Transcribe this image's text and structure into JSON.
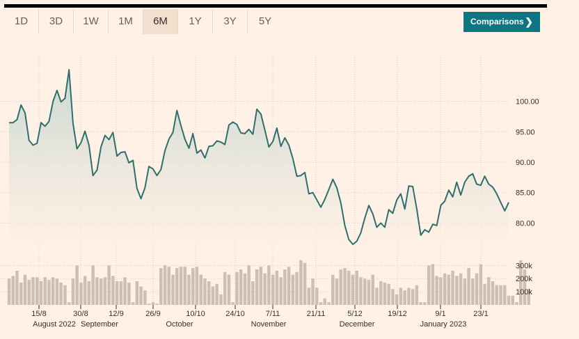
{
  "tabs": [
    {
      "label": "1D",
      "active": false
    },
    {
      "label": "3D",
      "active": false
    },
    {
      "label": "1W",
      "active": false
    },
    {
      "label": "1M",
      "active": false
    },
    {
      "label": "6M",
      "active": true
    },
    {
      "label": "1Y",
      "active": false
    },
    {
      "label": "3Y",
      "active": false
    },
    {
      "label": "5Y",
      "active": false
    }
  ],
  "comparisons_button": {
    "label": "Comparisons",
    "icon": "chevron-right-icon"
  },
  "colors": {
    "background": "#fff1e5",
    "line": "#2e6e6e",
    "area": "#dfe6de",
    "volume": "#ccc0b4",
    "accent": "#0d7680"
  },
  "chart_data": [
    {
      "type": "area",
      "title": "",
      "xlabel": "",
      "ylabel": "",
      "ylim": [
        75.7,
        107.5
      ],
      "yticks": [
        80,
        85,
        90,
        95,
        100
      ],
      "ytick_labels": [
        "80.00",
        "85.00",
        "90.00",
        "95.00",
        "100.00"
      ],
      "grid": true,
      "x_tick_labels": [
        "15/8",
        "30/8",
        "12/9",
        "26/9",
        "10/10",
        "24/10",
        "7/11",
        "21/11",
        "5/12",
        "19/12",
        "9/1",
        "23/1"
      ],
      "month_labels": [
        "August 2022",
        "September",
        "October",
        "November",
        "December",
        "January 2023"
      ],
      "series": [
        {
          "values": [
            96.5,
            96.5,
            97.0,
            99.4,
            98.1,
            93.6,
            92.8,
            93.1,
            96.5,
            95.9,
            96.7,
            100.0,
            101.8,
            99.9,
            100.5,
            105.2,
            96.4,
            92.2,
            93.2,
            95.1,
            92.8,
            87.8,
            88.7,
            92.5,
            94.4,
            93.7,
            94.9,
            91.0,
            91.6,
            91.7,
            89.9,
            90.3,
            85.7,
            84.0,
            85.8,
            89.3,
            88.9,
            87.8,
            88.8,
            91.9,
            93.8,
            94.9,
            98.5,
            96.0,
            93.8,
            92.3,
            94.7,
            91.5,
            92.0,
            90.7,
            92.6,
            92.7,
            93.5,
            93.3,
            92.9,
            96.1,
            96.6,
            96.2,
            94.8,
            94.7,
            95.4,
            94.6,
            98.7,
            97.9,
            95.3,
            92.5,
            93.4,
            95.6,
            92.6,
            94.0,
            92.8,
            90.6,
            87.7,
            87.8,
            88.3,
            84.8,
            85.0,
            83.8,
            82.6,
            83.9,
            85.5,
            87.2,
            85.8,
            83.3,
            79.6,
            77.3,
            76.5,
            77.0,
            78.4,
            80.8,
            82.9,
            81.5,
            79.3,
            80.0,
            79.3,
            82.2,
            81.6,
            83.8,
            84.8,
            82.3,
            86.1,
            86.0,
            82.3,
            78.0,
            78.9,
            78.5,
            79.8,
            79.6,
            82.9,
            83.6,
            85.4,
            84.3,
            86.7,
            84.6,
            86.7,
            87.7,
            88.1,
            86.4,
            86.2,
            87.7,
            86.4,
            85.9,
            84.8,
            83.4,
            82.0,
            83.4
          ]
        }
      ]
    },
    {
      "type": "bar",
      "title": "",
      "ylim": [
        0,
        360000
      ],
      "yticks": [
        100000,
        200000,
        300000
      ],
      "ytick_labels": [
        "100k",
        "200k",
        "300k"
      ],
      "series": [
        {
          "values": [
            200000,
            220000,
            260000,
            170000,
            230000,
            190000,
            210000,
            210000,
            180000,
            210000,
            190000,
            210000,
            200000,
            170000,
            150000,
            20000,
            200000,
            300000,
            170000,
            220000,
            180000,
            300000,
            210000,
            200000,
            210000,
            300000,
            220000,
            180000,
            180000,
            210000,
            170000,
            20000,
            180000,
            140000,
            110000,
            10000,
            20000,
            10000,
            280000,
            300000,
            290000,
            230000,
            280000,
            290000,
            290000,
            230000,
            280000,
            290000,
            230000,
            200000,
            180000,
            140000,
            160000,
            80000,
            250000,
            230000,
            20000,
            250000,
            270000,
            240000,
            300000,
            180000,
            270000,
            290000,
            240000,
            300000,
            230000,
            260000,
            210000,
            270000,
            290000,
            230000,
            250000,
            340000,
            320000,
            130000,
            200000,
            130000,
            20000,
            50000,
            20000,
            230000,
            200000,
            270000,
            280000,
            260000,
            230000,
            260000,
            210000,
            200000,
            190000,
            230000,
            130000,
            180000,
            170000,
            160000,
            120000,
            80000,
            130000,
            110000,
            130000,
            120000,
            150000,
            20000,
            20000,
            300000,
            310000,
            220000,
            210000,
            240000,
            230000,
            260000,
            220000,
            240000,
            200000,
            280000,
            200000,
            240000,
            310000,
            160000,
            210000,
            180000,
            150000,
            150000,
            150000,
            70000,
            70000,
            20000,
            340000,
            270000,
            120000
          ]
        }
      ]
    }
  ]
}
